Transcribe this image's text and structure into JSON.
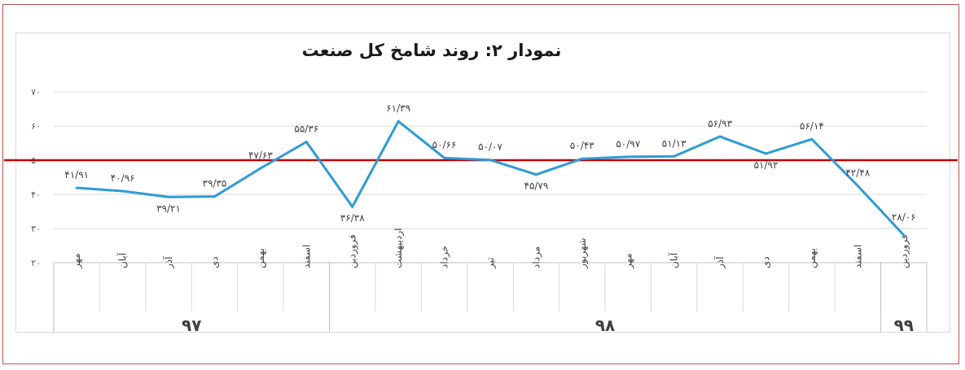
{
  "chart_data": {
    "type": "line",
    "title": "نمودار ۲: روند شامخ کل صنعت",
    "xlabel": "",
    "ylabel": "",
    "ylim": [
      20,
      70
    ],
    "yticks": [
      20,
      30,
      40,
      50,
      60,
      70
    ],
    "ytick_labels": [
      "۲۰",
      "۳۰",
      "۴۰",
      "۵۰",
      "۶۰",
      "۷۰"
    ],
    "grid": true,
    "legend": "none",
    "reference_line": {
      "value": 50,
      "color": "#c00000"
    },
    "line_color": "#2e9bd6",
    "categories": [
      "مهر",
      "آبان",
      "آذر",
      "دی",
      "بهمن",
      "اسفند",
      "فروردین",
      "اردیبهشت",
      "خرداد",
      "تیر",
      "مرداد",
      "شهریور",
      "مهر",
      "آبان",
      "آذر",
      "دی",
      "بهمن",
      "اسفند",
      "فروردین"
    ],
    "values": [
      41.91,
      40.96,
      39.21,
      39.35,
      47.63,
      55.36,
      36.38,
      61.39,
      50.66,
      50.07,
      45.79,
      50.43,
      50.97,
      51.13,
      56.93,
      51.92,
      56.14,
      42.48,
      28.06
    ],
    "value_labels": [
      "۴۱/۹۱",
      "۴۰/۹۶",
      "۳۹/۲۱",
      "۳۹/۳۵",
      "۴۷/۶۳",
      "۵۵/۳۶",
      "۳۶/۳۸",
      "۶۱/۳۹",
      "۵۰/۶۶",
      "۵۰/۰۷",
      "۴۵/۷۹",
      "۵۰/۴۳",
      "۵۰/۹۷",
      "۵۱/۱۳",
      "۵۶/۹۳",
      "۵۱/۹۲",
      "۵۶/۱۴",
      "۴۲/۴۸",
      "۲۸/۰۶"
    ],
    "year_groups": [
      {
        "label": "۹۷",
        "count": 6
      },
      {
        "label": "۹۸",
        "count": 12
      },
      {
        "label": "۹۹",
        "count": 1
      }
    ]
  }
}
